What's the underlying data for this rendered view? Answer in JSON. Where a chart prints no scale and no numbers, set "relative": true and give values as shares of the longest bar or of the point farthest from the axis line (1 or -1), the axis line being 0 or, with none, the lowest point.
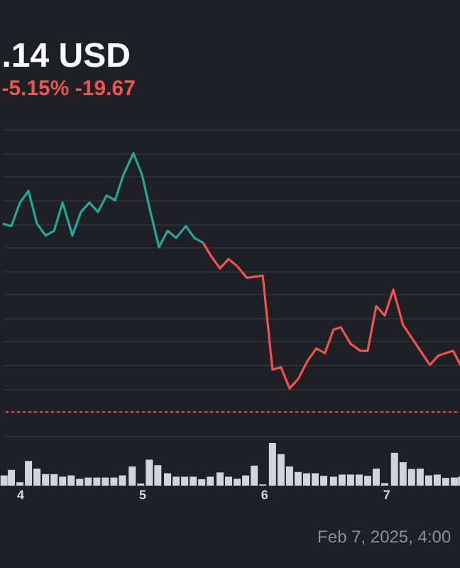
{
  "chart_data": [
    {
      "type": "line",
      "title": ".14 USD",
      "subtitle": "-5.15% -19.67",
      "relative": true,
      "xlim": [
        3.86,
        7.63
      ],
      "tick_labels": false,
      "grid": "y",
      "series": [
        {
          "color": "#26a69a",
          "x": [
            3.86,
            3.93,
            4.0,
            4.07,
            4.14,
            4.21,
            4.28,
            4.35,
            4.43,
            4.5,
            4.57,
            4.64,
            4.71,
            4.78,
            4.85,
            4.93,
            5.0,
            5.07,
            5.14,
            5.21,
            5.28,
            5.36,
            5.43,
            5.5
          ],
          "values": [
            0.7,
            0.69,
            0.79,
            0.84,
            0.7,
            0.65,
            0.67,
            0.79,
            0.65,
            0.75,
            0.79,
            0.75,
            0.82,
            0.8,
            0.91,
            1.0,
            0.91,
            0.75,
            0.6,
            0.67,
            0.64,
            0.69,
            0.64,
            0.62
          ]
        },
        {
          "color": "#ef5350",
          "x": [
            5.5,
            5.57,
            5.64,
            5.71,
            5.78,
            5.86,
            5.99,
            6.07,
            6.14,
            6.21,
            6.28,
            6.36,
            6.43,
            6.5,
            6.57,
            6.63,
            6.71,
            6.79,
            6.85,
            6.92,
            6.99,
            7.06,
            7.14,
            7.36,
            7.43,
            7.55,
            7.62
          ],
          "values": [
            0.62,
            0.56,
            0.51,
            0.55,
            0.52,
            0.47,
            0.48,
            0.08,
            0.09,
            0.0,
            0.04,
            0.12,
            0.17,
            0.15,
            0.25,
            0.26,
            0.19,
            0.16,
            0.16,
            0.35,
            0.31,
            0.42,
            0.27,
            0.1,
            0.14,
            0.16,
            0.09
          ]
        }
      ],
      "ref_lines": [
        {
          "axis": "y",
          "value": -0.1,
          "color": "#ef5350",
          "line_style": "dotted"
        }
      ]
    },
    {
      "type": "bar",
      "relative": true,
      "xlim": [
        3.86,
        7.63
      ],
      "xticks": [
        4,
        5,
        6,
        7
      ],
      "color": "#d1d4dc",
      "x": [
        3.87,
        3.93,
        4.0,
        4.07,
        4.14,
        4.21,
        4.28,
        4.35,
        4.42,
        4.49,
        4.56,
        4.63,
        4.7,
        4.77,
        4.84,
        4.92,
        4.99,
        5.06,
        5.13,
        5.21,
        5.28,
        5.35,
        5.42,
        5.49,
        5.56,
        5.64,
        5.71,
        5.78,
        5.85,
        5.92,
        5.99,
        6.07,
        6.14,
        6.21,
        6.28,
        6.35,
        6.42,
        6.49,
        6.57,
        6.64,
        6.71,
        6.78,
        6.85,
        6.92,
        6.99,
        7.07,
        7.14,
        7.21,
        7.28,
        7.35,
        7.42,
        7.49,
        7.56,
        7.62
      ],
      "values": [
        0.24,
        0.37,
        0.08,
        0.58,
        0.4,
        0.27,
        0.27,
        0.21,
        0.24,
        0.16,
        0.19,
        0.19,
        0.19,
        0.19,
        0.24,
        0.45,
        0.05,
        0.61,
        0.48,
        0.29,
        0.21,
        0.21,
        0.21,
        0.15,
        0.21,
        0.31,
        0.21,
        0.16,
        0.24,
        0.47,
        0.03,
        1.0,
        0.74,
        0.45,
        0.32,
        0.29,
        0.29,
        0.23,
        0.21,
        0.26,
        0.26,
        0.26,
        0.23,
        0.4,
        0.06,
        0.77,
        0.55,
        0.39,
        0.4,
        0.24,
        0.26,
        0.18,
        0.19,
        0.21
      ],
      "annotations": [
        "Feb 7, 2025, 4:00"
      ]
    }
  ]
}
